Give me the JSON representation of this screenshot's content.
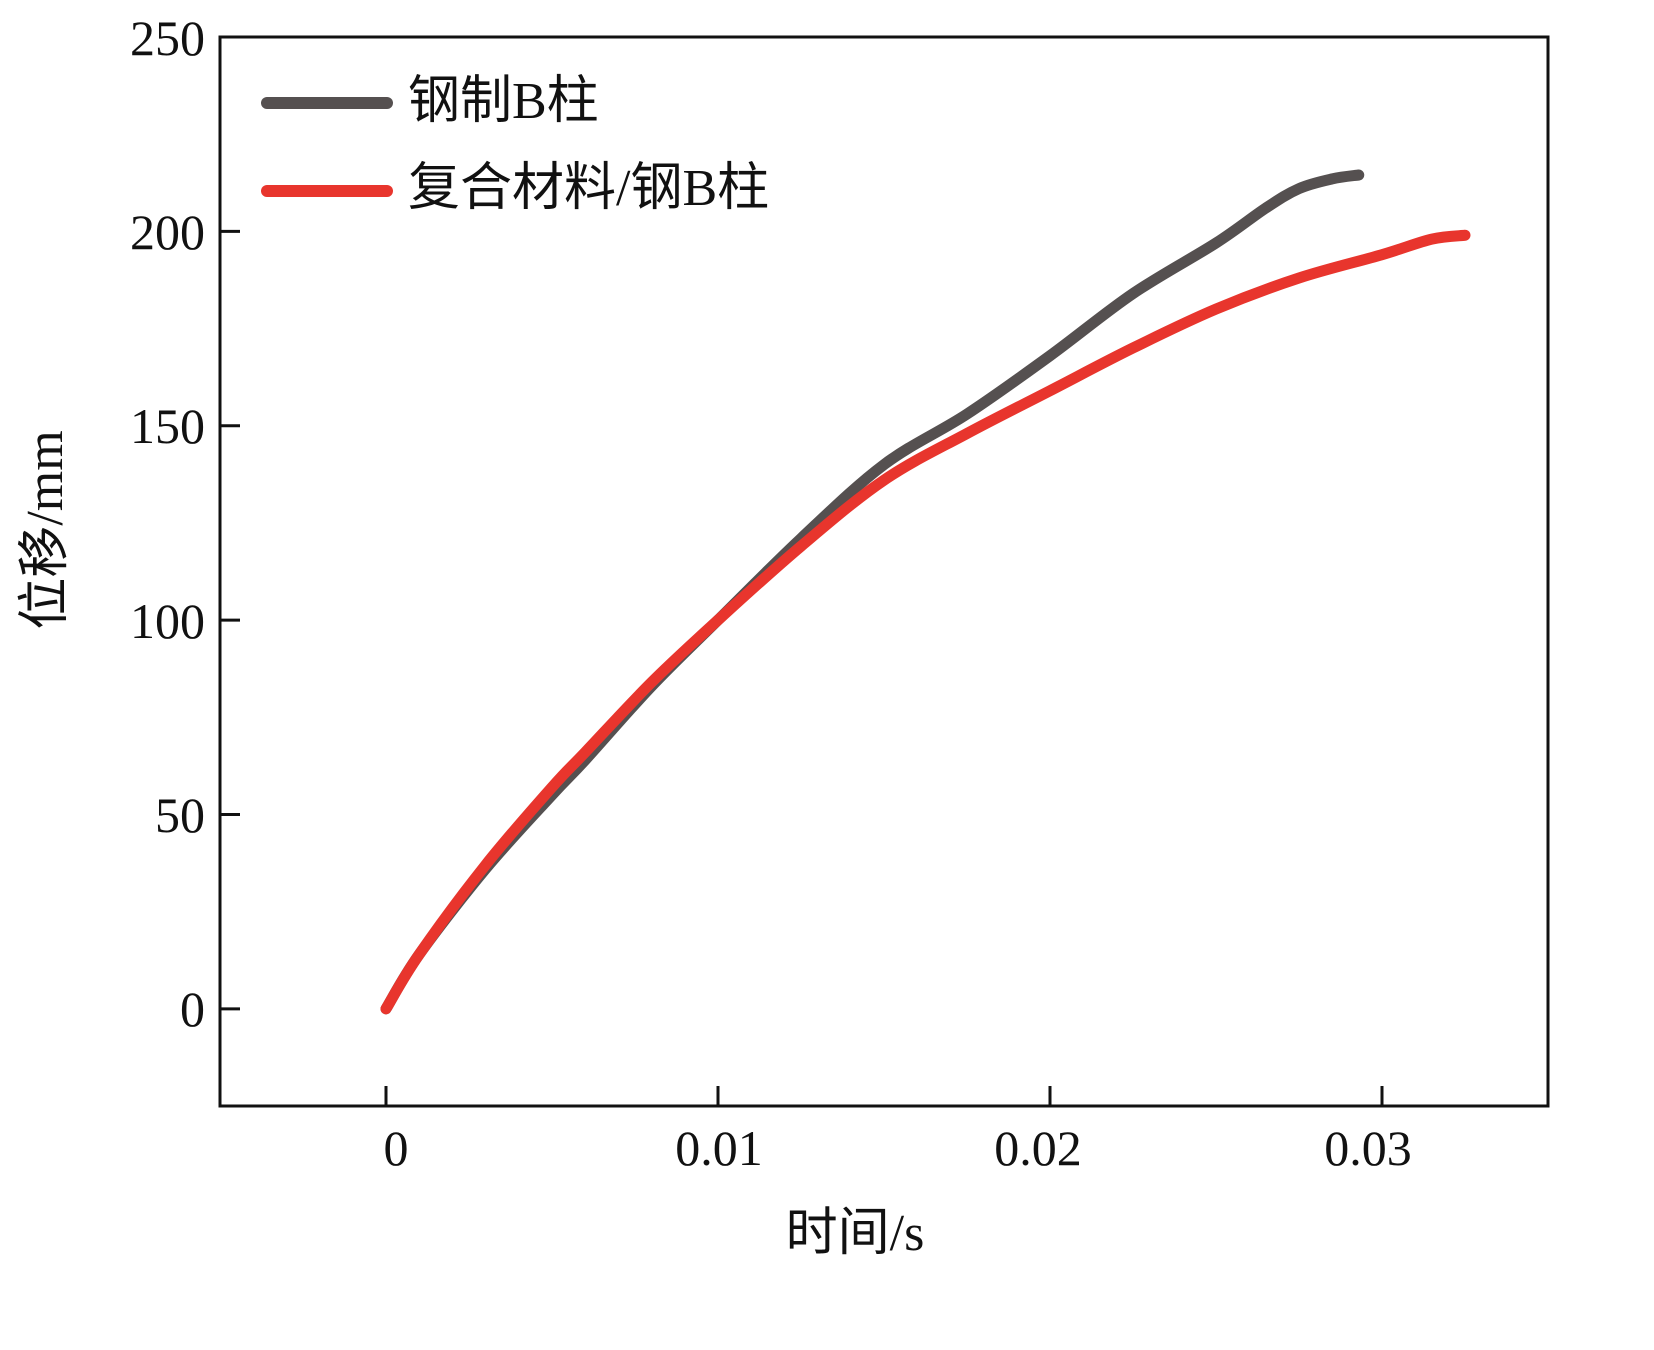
{
  "chart_data": {
    "type": "line",
    "title": "",
    "xlabel": "时间/s",
    "ylabel": "位移/mm",
    "xlim": [
      -0.005,
      0.035
    ],
    "ylim": [
      -25,
      250
    ],
    "xticks": [
      0,
      0.01,
      0.02,
      0.03
    ],
    "xtick_labels": [
      "0",
      "0.01",
      "0.02",
      "0.03"
    ],
    "yticks": [
      0,
      50,
      100,
      150,
      200,
      250
    ],
    "ytick_labels": [
      "0",
      "50",
      "100",
      "150",
      "200",
      "250"
    ],
    "grid": false,
    "legend_position": "top-left",
    "series": [
      {
        "name": "钢制B柱",
        "color": "#555050",
        "x": [
          0,
          0.001,
          0.003,
          0.005,
          0.006,
          0.008,
          0.01,
          0.0125,
          0.015,
          0.0175,
          0.02,
          0.0225,
          0.025,
          0.0265,
          0.0275,
          0.0285,
          0.0293
        ],
        "y": [
          0,
          14,
          36,
          55,
          64,
          83,
          100,
          121,
          140,
          153,
          168,
          184,
          197,
          206,
          211,
          213.5,
          214.5
        ]
      },
      {
        "name": "复合材料/钢B柱",
        "color": "#e8352d",
        "x": [
          0,
          0.001,
          0.003,
          0.005,
          0.006,
          0.008,
          0.01,
          0.0125,
          0.015,
          0.0175,
          0.02,
          0.0225,
          0.025,
          0.0275,
          0.03,
          0.0315,
          0.0325
        ],
        "y": [
          0,
          14,
          37,
          57,
          66,
          84,
          100,
          119,
          136,
          148,
          159,
          170,
          180,
          188,
          194,
          198,
          199
        ]
      }
    ]
  }
}
